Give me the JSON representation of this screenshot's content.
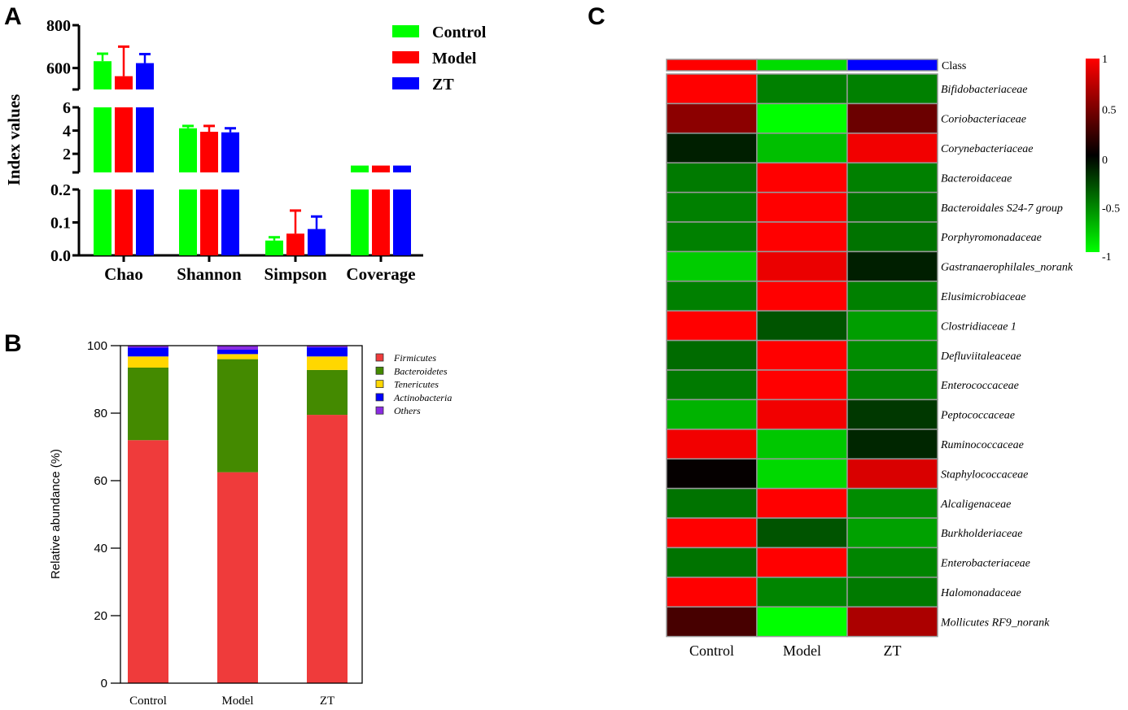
{
  "panel_labels": [
    "A",
    "B",
    "C"
  ],
  "chart_data": [
    {
      "type": "bar",
      "panel": "A",
      "title": "",
      "ylabel": "Index values",
      "categories": [
        "Chao",
        "Shannon",
        "Simpson",
        "Coverage"
      ],
      "legend": {
        "placement": "top-right",
        "entries": [
          "Control",
          "Model",
          "ZT"
        ]
      },
      "colors": [
        "#00ff00",
        "#ff0000",
        "#0000ff"
      ],
      "broken_axis_segments": [
        {
          "ylim": [
            500,
            800
          ],
          "ticks": [
            600,
            800
          ],
          "tick_labels": [
            "600",
            "800"
          ]
        },
        {
          "ylim": [
            0.4,
            6
          ],
          "ticks": [
            2,
            4,
            6
          ],
          "tick_labels": [
            "2",
            "4",
            "6"
          ]
        },
        {
          "ylim": [
            0,
            0.2
          ],
          "ticks": [
            0,
            0.1,
            0.2
          ],
          "tick_labels": [
            "0.0",
            "0.1",
            "0.2"
          ]
        }
      ],
      "series": [
        {
          "name": "Control",
          "values": [
            632,
            4.2,
            0.045,
            0.99
          ],
          "errors": [
            35,
            0.2,
            0.01,
            0
          ]
        },
        {
          "name": "Model",
          "values": [
            562,
            3.9,
            0.066,
            0.99
          ],
          "errors": [
            138,
            0.5,
            0.07,
            0
          ]
        },
        {
          "name": "ZT",
          "values": [
            623,
            3.85,
            0.08,
            0.99
          ],
          "errors": [
            42,
            0.35,
            0.038,
            0
          ]
        }
      ]
    },
    {
      "type": "bar",
      "stacked": true,
      "panel": "B",
      "title": "",
      "xlabel": "",
      "ylabel": "Relative abundance (%)",
      "ylim": [
        0,
        100
      ],
      "yticks": [
        0,
        20,
        40,
        60,
        80,
        100
      ],
      "categories": [
        "Control",
        "Model",
        "ZT"
      ],
      "legend_placement": "right",
      "series": [
        {
          "name": "Firmicutes",
          "color": "#ef3b3b",
          "values": [
            72.0,
            62.5,
            79.5
          ]
        },
        {
          "name": "Bacteroidetes",
          "color": "#448a00",
          "values": [
            21.5,
            33.5,
            13.3
          ]
        },
        {
          "name": "Tenericutes",
          "color": "#ffd700",
          "values": [
            3.3,
            1.5,
            4.0
          ]
        },
        {
          "name": "Actinobacteria",
          "color": "#0000ff",
          "values": [
            2.6,
            1.3,
            2.7
          ]
        },
        {
          "name": "Others",
          "color": "#8a2be2",
          "values": [
            0.6,
            1.2,
            0.5
          ]
        }
      ]
    },
    {
      "type": "heatmap",
      "panel": "C",
      "columns": [
        "Control",
        "Model",
        "ZT"
      ],
      "class_row_label": "Class",
      "class_colors": [
        "#ff0000",
        "#00dd00",
        "#0000ff"
      ],
      "colorbar": {
        "range": [
          -1,
          1
        ],
        "ticks": [
          1,
          0.5,
          0,
          -0.5,
          -1
        ],
        "tick_labels": [
          "1",
          "0.5",
          "0",
          "-0.5",
          "-1"
        ],
        "low": "#00ff00",
        "mid": "#000000",
        "high": "#ff0000"
      },
      "rows": [
        {
          "label": "Bifidobacteriaceae",
          "values": [
            1,
            -0.5,
            -0.5
          ]
        },
        {
          "label": "Coriobacteriaceae",
          "values": [
            0.55,
            -1,
            0.42
          ]
        },
        {
          "label": "Corynebacteriaceae",
          "values": [
            -0.12,
            -0.75,
            0.95
          ]
        },
        {
          "label": "Bacteroidaceae",
          "values": [
            -0.48,
            1,
            -0.5
          ]
        },
        {
          "label": "Bacteroidales S24-7 group",
          "values": [
            -0.5,
            1,
            -0.45
          ]
        },
        {
          "label": "Porphyromonadaceae",
          "values": [
            -0.5,
            1,
            -0.45
          ]
        },
        {
          "label": "Gastranaerophilales_norank",
          "values": [
            -0.8,
            0.92,
            -0.12
          ]
        },
        {
          "label": "Elusimicrobiaceae",
          "values": [
            -0.5,
            1,
            -0.5
          ]
        },
        {
          "label": "Clostridiaceae 1",
          "values": [
            1,
            -0.33,
            -0.62
          ]
        },
        {
          "label": "Defluviitaleaceae",
          "values": [
            -0.42,
            1,
            -0.55
          ]
        },
        {
          "label": "Enterococcaceae",
          "values": [
            -0.48,
            1,
            -0.5
          ]
        },
        {
          "label": "Peptococcaceae",
          "values": [
            -0.7,
            0.95,
            -0.22
          ]
        },
        {
          "label": "Ruminococcaceae",
          "values": [
            0.95,
            -0.78,
            -0.15
          ]
        },
        {
          "label": "Staphylococcaceae",
          "values": [
            0.02,
            -0.85,
            0.85
          ]
        },
        {
          "label": "Alcaligenaceae",
          "values": [
            -0.45,
            1,
            -0.55
          ]
        },
        {
          "label": "Burkholderiaceae",
          "values": [
            1,
            -0.33,
            -0.63
          ]
        },
        {
          "label": "Enterobacteriaceae",
          "values": [
            -0.45,
            1,
            -0.52
          ]
        },
        {
          "label": "Halomonadaceae",
          "values": [
            1,
            -0.52,
            -0.48
          ]
        },
        {
          "label": "Mollicutes RF9_norank",
          "values": [
            0.28,
            -1,
            0.67
          ]
        }
      ]
    }
  ]
}
